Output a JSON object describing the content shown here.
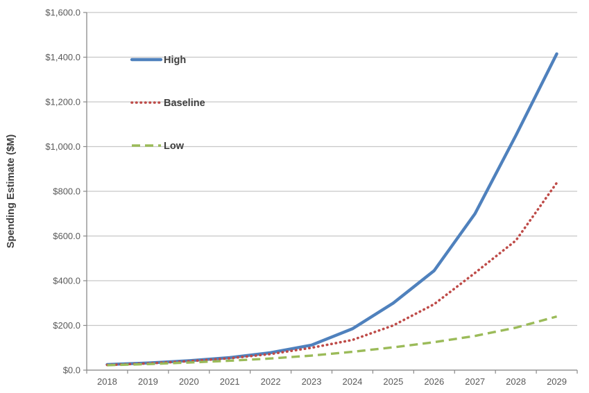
{
  "chart_data": {
    "type": "line",
    "title": "",
    "xlabel": "",
    "ylabel": "Spending Estimate ($M)",
    "ylim": [
      0,
      1600
    ],
    "grid": true,
    "legend_position": "inside-top-left",
    "x": [
      "2018",
      "2019",
      "2020",
      "2021",
      "2022",
      "2023",
      "2024",
      "2025",
      "2026",
      "2027",
      "2028",
      "2029"
    ],
    "y_ticks": [
      {
        "v": 0,
        "label": "$0.0"
      },
      {
        "v": 200,
        "label": "$200.0"
      },
      {
        "v": 400,
        "label": "$400.0"
      },
      {
        "v": 600,
        "label": "$600.0"
      },
      {
        "v": 800,
        "label": "$800.0"
      },
      {
        "v": 1000,
        "label": "$1,000.0"
      },
      {
        "v": 1200,
        "label": "$1,200.0"
      },
      {
        "v": 1400,
        "label": "$1,400.0"
      },
      {
        "v": 1600,
        "label": "$1,600.0"
      }
    ],
    "series": [
      {
        "name": "High",
        "style": "solid",
        "color": "#4F81BD",
        "values": [
          25,
          32,
          42,
          56,
          78,
          112,
          185,
          300,
          445,
          700,
          1050,
          1415
        ]
      },
      {
        "name": "Baseline",
        "style": "dotted",
        "color": "#BE4B48",
        "values": [
          23,
          30,
          40,
          53,
          72,
          100,
          135,
          200,
          295,
          435,
          580,
          838
        ]
      },
      {
        "name": "Low",
        "style": "dashed",
        "color": "#9BBB59",
        "values": [
          22,
          27,
          34,
          42,
          52,
          65,
          82,
          102,
          125,
          153,
          190,
          240
        ]
      }
    ],
    "colors": {
      "grid_line": "#C6C6C6",
      "axis_line": "#898989",
      "tick_text": "#595959",
      "axis_title_text": "#3F3F3F",
      "legend_text": "#3F3F3F",
      "background": "#FFFFFF"
    }
  }
}
